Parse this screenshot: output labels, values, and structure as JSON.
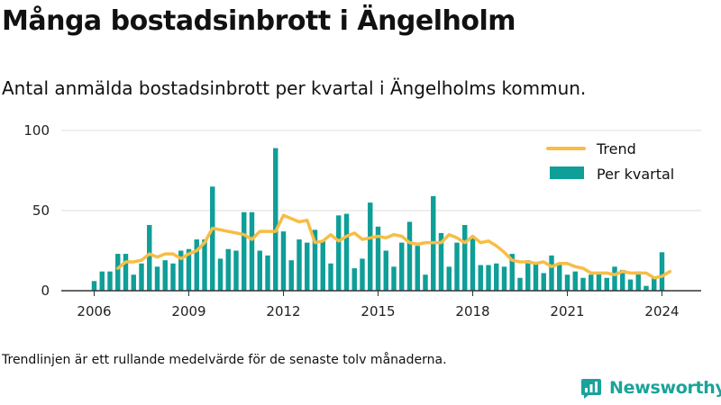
{
  "title": "Många bostadsinbrott i Ängelholm",
  "subtitle": "Antal anmälda bostadsinbrott per kvartal i Ängelholms kommun.",
  "footnote": "Trendlinjen är ett rullande medelvärde för de senaste tolv månaderna.",
  "brand": {
    "name": "Newsworthy",
    "icon": "newsworthy-logo-icon"
  },
  "colors": {
    "bars": "#0f9e98",
    "trend": "#f7bd45",
    "grid": "#dddddd",
    "axis": "#333333",
    "brand": "#1aa39a"
  },
  "chart_data": {
    "type": "bar",
    "title": "Många bostadsinbrott i Ängelholm",
    "subtitle": "Antal anmälda bostadsinbrott per kvartal i Ängelholms kommun.",
    "xlabel": "",
    "ylabel": "",
    "x_start": 2006.0,
    "x_step": 0.25,
    "xticks": [
      2006,
      2009,
      2012,
      2015,
      2018,
      2021,
      2024
    ],
    "yticks": [
      0,
      50,
      100
    ],
    "ylim": [
      0,
      100
    ],
    "grid": true,
    "legend_position": "top-right",
    "legend": {
      "trend": "Trend",
      "bars": "Per kvartal"
    },
    "series": [
      {
        "name": "Per kvartal",
        "type": "bar",
        "values": [
          6,
          12,
          12,
          23,
          23,
          10,
          17,
          41,
          15,
          19,
          17,
          25,
          26,
          32,
          32,
          65,
          20,
          26,
          25,
          49,
          49,
          25,
          22,
          89,
          37,
          19,
          32,
          30,
          38,
          31,
          17,
          47,
          48,
          14,
          20,
          55,
          40,
          25,
          15,
          30,
          43,
          28,
          10,
          59,
          36,
          15,
          30,
          41,
          33,
          16,
          16,
          17,
          15,
          23,
          8,
          19,
          18,
          11,
          22,
          16,
          10,
          12,
          8,
          10,
          11,
          8,
          15,
          13,
          7,
          12,
          3,
          8,
          24
        ]
      },
      {
        "name": "Trend",
        "type": "line",
        "x_start": 2006.75,
        "values": [
          14,
          18,
          18,
          19,
          23,
          21,
          23,
          23,
          20,
          23,
          25,
          30,
          39,
          38,
          37,
          36,
          35,
          32,
          37,
          37,
          37,
          47,
          45,
          43,
          44,
          30,
          31,
          35,
          31,
          34,
          36,
          32,
          33,
          34,
          33,
          35,
          34,
          30,
          29,
          30,
          30,
          30,
          35,
          33,
          30,
          34,
          30,
          31,
          28,
          24,
          19,
          18,
          18,
          17,
          18,
          15,
          17,
          17,
          15,
          14,
          11,
          11,
          11,
          10,
          12,
          11,
          11,
          11,
          8,
          9,
          12
        ]
      }
    ]
  }
}
